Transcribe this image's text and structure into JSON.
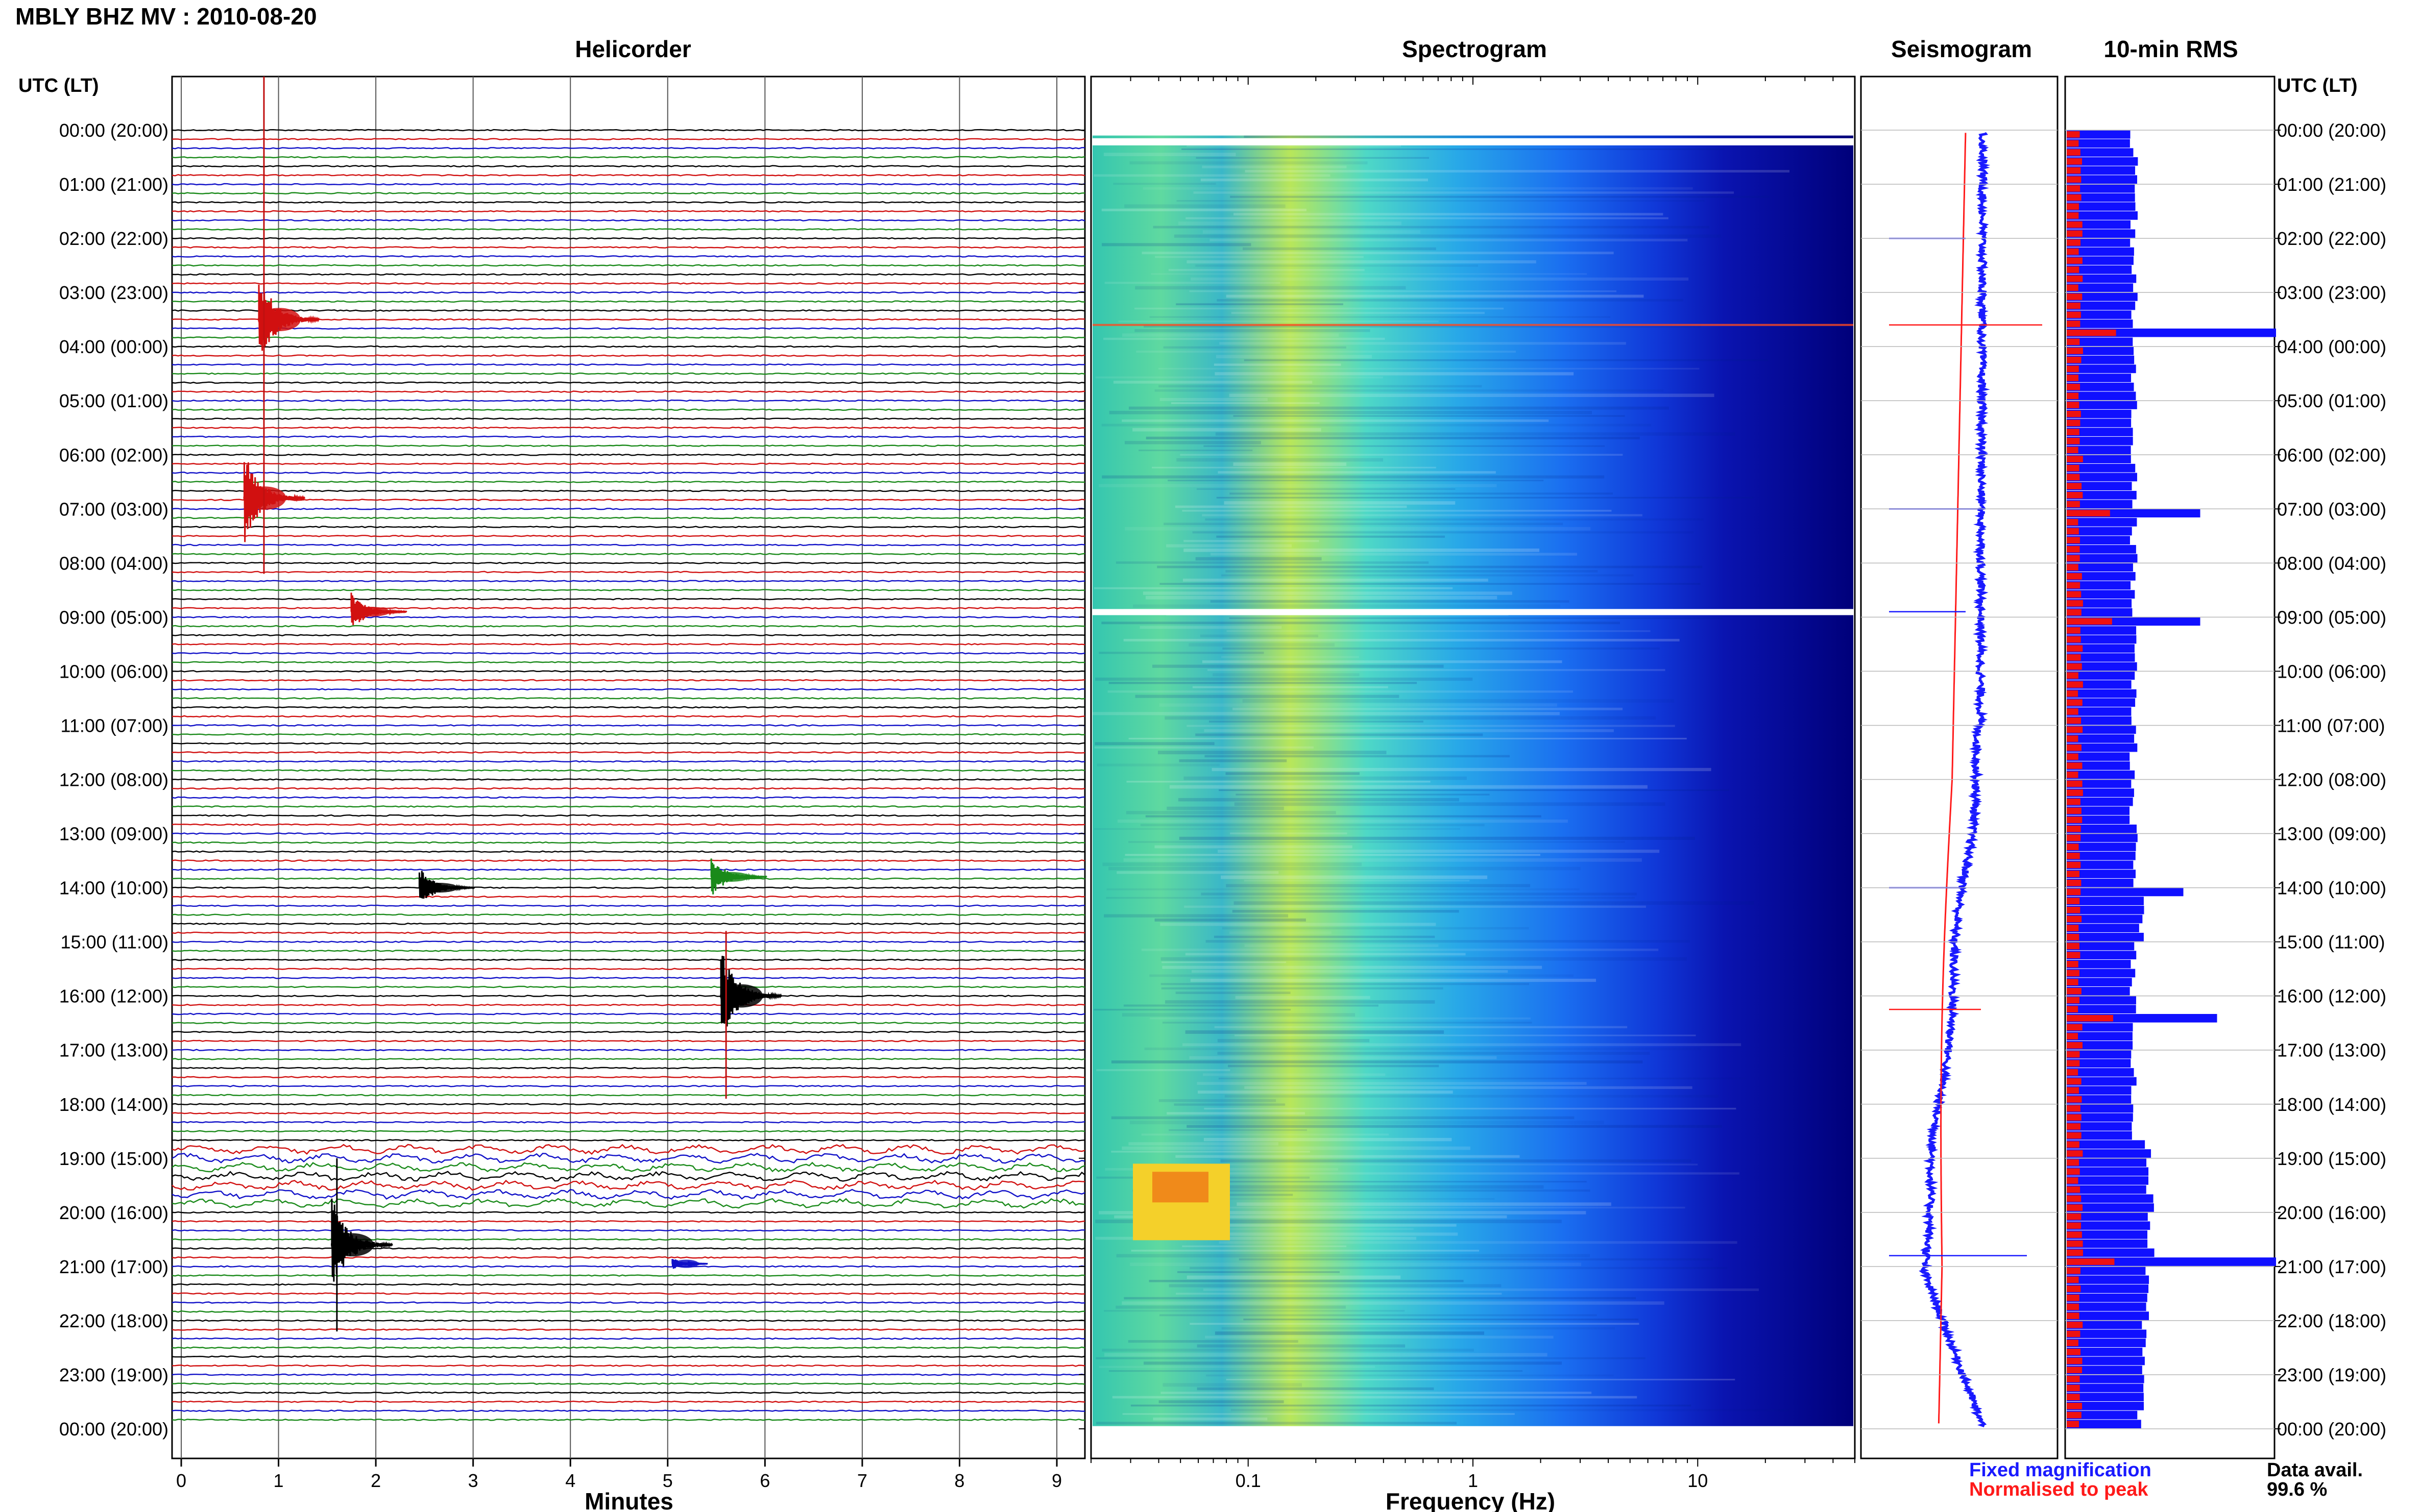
{
  "header": {
    "station_title": "MBLY BHZ MV : 2010-08-20"
  },
  "panels": {
    "helicorder_title": "Helicorder",
    "spectrogram_title": "Spectrogram",
    "seismogram_title": "Seismogram",
    "rms_title": "10-min RMS"
  },
  "axes": {
    "time_axis_label_left": "UTC (LT)",
    "time_axis_label_right": "UTC (LT)",
    "minutes_label": "Minutes",
    "frequency_label": "Frequency (Hz)"
  },
  "legend": {
    "fixed_magnification": "Fixed magnification",
    "normalised_to_peak": "Normalised to peak",
    "fixed_color": "#1a1aff",
    "normalised_color": "#ff1a1a"
  },
  "data_availability": {
    "label": "Data avail.",
    "value": "99.6 %"
  },
  "colors": {
    "trace_colors": [
      "#000000",
      "#d11010",
      "#1010c8",
      "#1a8a1a"
    ],
    "rms_blue": "#1010ff",
    "rms_red": "#ee1111",
    "spectrogram_dark": "#00007a"
  },
  "chart_data": [
    {
      "type": "line",
      "name": "helicorder",
      "title": "Helicorder",
      "xlabel": "Minutes",
      "x_ticks": [
        "0",
        "1",
        "2",
        "3",
        "4",
        "5",
        "6",
        "7",
        "8",
        "9"
      ],
      "xlim": [
        0,
        10
      ],
      "time_labels": [
        "00:00 (20:00)",
        "01:00 (21:00)",
        "02:00 (22:00)",
        "03:00 (23:00)",
        "04:00 (00:00)",
        "05:00 (01:00)",
        "06:00 (02:00)",
        "07:00 (03:00)",
        "08:00 (04:00)",
        "09:00 (05:00)",
        "10:00 (06:00)",
        "11:00 (07:00)",
        "12:00 (08:00)",
        "13:00 (09:00)",
        "14:00 (10:00)",
        "15:00 (11:00)",
        "16:00 (12:00)",
        "17:00 (13:00)",
        "18:00 (14:00)",
        "19:00 (15:00)",
        "20:00 (16:00)",
        "21:00 (17:00)",
        "22:00 (18:00)",
        "23:00 (19:00)",
        "00:00 (20:00)"
      ],
      "rows_per_hour": 6,
      "events": [
        {
          "hour": 3.5,
          "minute": 0.85,
          "amplitude": "large"
        },
        {
          "hour": 6.8,
          "minute": 0.7,
          "amplitude": "large"
        },
        {
          "hour": 8.9,
          "minute": 1.8,
          "amplitude": "medium"
        },
        {
          "hour": 14.0,
          "minute": 2.5,
          "amplitude": "medium"
        },
        {
          "hour": 13.8,
          "minute": 5.5,
          "amplitude": "medium"
        },
        {
          "hour": 16.0,
          "minute": 5.6,
          "amplitude": "large"
        },
        {
          "hour": 20.6,
          "minute": 1.6,
          "amplitude": "large"
        },
        {
          "hour": 20.95,
          "minute": 5.1,
          "amplitude": "small"
        }
      ]
    },
    {
      "type": "heatmap",
      "name": "spectrogram",
      "title": "Spectrogram",
      "xlabel": "Frequency (Hz)",
      "x_scale": "log",
      "xlim": [
        0.02,
        50
      ],
      "x_ticks": [
        "0.1",
        "1",
        "10"
      ]
    },
    {
      "type": "line",
      "name": "seismogram",
      "title": "Seismogram",
      "series": [
        {
          "name": "Fixed magnification",
          "color": "#1a1aff"
        },
        {
          "name": "Normalised to peak",
          "color": "#ff1a1a"
        }
      ]
    },
    {
      "type": "bar",
      "name": "rms",
      "title": "10-min RMS",
      "notable_bins": [
        {
          "hour": 3.6,
          "level": 1.0
        },
        {
          "hour": 7.0,
          "level": 0.55
        },
        {
          "hour": 9.0,
          "level": 0.55
        },
        {
          "hour": 14.0,
          "level": 0.45
        },
        {
          "hour": 16.3,
          "level": 0.65
        },
        {
          "hour": 20.8,
          "level": 1.0
        }
      ]
    }
  ]
}
